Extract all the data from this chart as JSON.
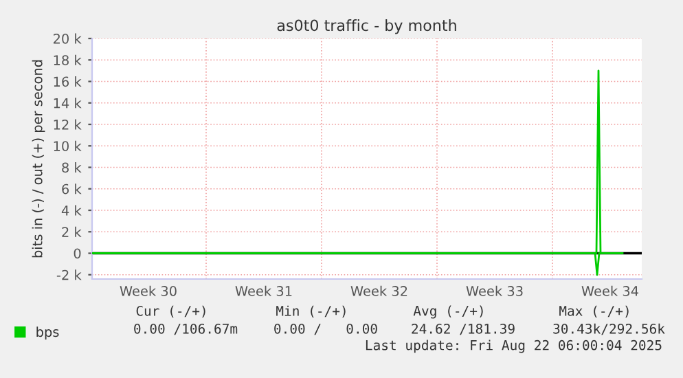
{
  "chart_data": {
    "type": "line",
    "title": "as0t0 traffic - by month",
    "ylabel": "bits in (-) / out (+) per second",
    "series": [
      {
        "name": "bps",
        "color": "#00cc00",
        "x": [
          "2025-07-21T02:00",
          "2025-08-20T16:00",
          "2025-08-20T19:00",
          "2025-08-20T22:00",
          "2025-08-22T06:00"
        ],
        "values": [
          0,
          0,
          17000,
          0,
          0
        ]
      },
      {
        "color": "#00cc00",
        "x": [
          "2025-08-20T14:00",
          "2025-08-20T17:00",
          "2025-08-20T20:00"
        ],
        "values": [
          0,
          -2000,
          0
        ]
      }
    ],
    "xlim": [
      "2025-07-21T02:00",
      "2025-08-23T10:00"
    ],
    "xticks": [
      {
        "value": "2025-07-24T12:00",
        "label": "Week 30"
      },
      {
        "value": "2025-07-28T00:00",
        "label": null
      },
      {
        "value": "2025-07-31T12:00",
        "label": "Week 31"
      },
      {
        "value": "2025-08-04T00:00",
        "label": null
      },
      {
        "value": "2025-08-07T12:00",
        "label": "Week 32"
      },
      {
        "value": "2025-08-11T00:00",
        "label": null
      },
      {
        "value": "2025-08-14T12:00",
        "label": "Week 33"
      },
      {
        "value": "2025-08-18T00:00",
        "label": null
      },
      {
        "value": "2025-08-21T12:00",
        "label": "Week 34"
      }
    ],
    "ylim": [
      -2400,
      20000
    ],
    "yticks": [
      {
        "value": -2000,
        "label": "-2 k"
      },
      0,
      {
        "value": 2000,
        "label": "2 k"
      },
      {
        "value": 4000,
        "label": "4 k"
      },
      {
        "value": 6000,
        "label": "6 k"
      },
      {
        "value": 8000,
        "label": "8 k"
      },
      {
        "value": 10000,
        "label": "10 k"
      },
      {
        "value": 12000,
        "label": "12 k"
      },
      {
        "value": 14000,
        "label": "14 k"
      },
      {
        "value": 16000,
        "label": "16 k"
      },
      {
        "value": 18000,
        "label": "18 k"
      },
      {
        "value": 20000,
        "label": "20 k"
      }
    ],
    "ref_lines": [
      {
        "axis": "y",
        "value": 0,
        "color": "#000000"
      }
    ],
    "grid": true,
    "legend": "bottom left",
    "annotations": [
      "Cur (-/+)",
      "Min (-/+)",
      "Avg (-/+)",
      "Max (-/+)",
      "0.00 /106.67m",
      "0.00 /   0.00",
      "24.62 /181.39",
      "30.43k/292.56k",
      "Last update: Fri Aug 22 06:00:04 2025"
    ]
  }
}
